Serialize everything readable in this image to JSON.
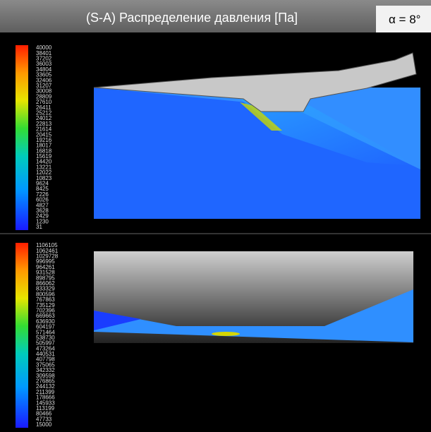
{
  "header": {
    "title": "(S-A) Распределение давления [Па]",
    "angle": "α = 8°"
  },
  "panels": [
    {
      "colorbar_labels": [
        40000,
        38401,
        37202,
        36003,
        34804,
        33605,
        32406,
        31207,
        30008,
        28809,
        27610,
        26411,
        25212,
        24012,
        22813,
        21614,
        20415,
        19216,
        18017,
        16818,
        15619,
        14420,
        13221,
        12022,
        10823,
        9624,
        8425,
        7226,
        6026,
        4827,
        3628,
        2429,
        1230,
        31
      ]
    },
    {
      "colorbar_labels": [
        1106105,
        1062461,
        1029728,
        996995,
        964261,
        931528,
        898795,
        866062,
        833329,
        800596,
        767863,
        735129,
        702396,
        669663,
        636930,
        604197,
        571464,
        538730,
        505997,
        473264,
        440531,
        407798,
        375065,
        342332,
        309598,
        276865,
        244132,
        211399,
        178666,
        145933,
        113199,
        80466,
        47733,
        15000
      ]
    }
  ]
}
